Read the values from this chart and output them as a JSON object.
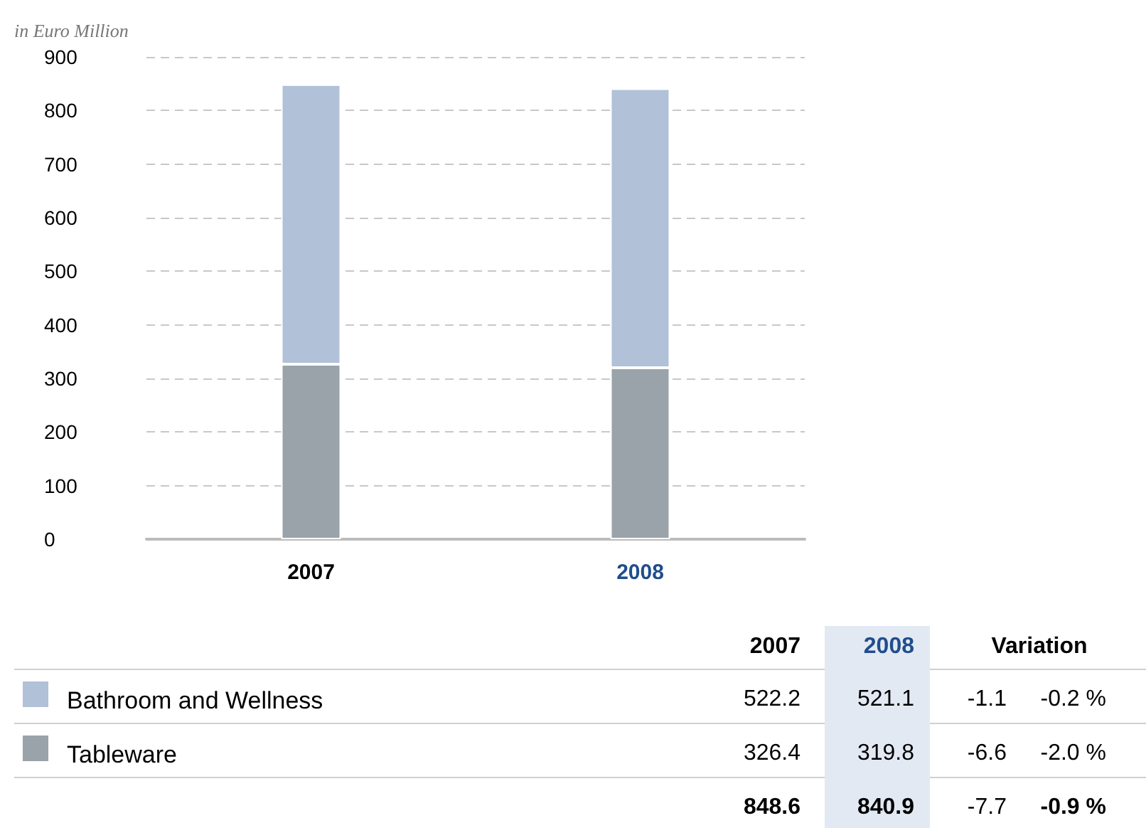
{
  "chart_data": [
    {
      "type": "bar",
      "stacked": true,
      "ylabel": "in Euro Million",
      "categories": [
        "2007",
        "2008"
      ],
      "series": [
        {
          "name": "Tableware",
          "color": "#9aa3aa",
          "values": [
            326.4,
            319.8
          ]
        },
        {
          "name": "Bathroom and Wellness",
          "color": "#b0c1d8",
          "values": [
            522.2,
            521.1
          ]
        }
      ],
      "ylim": [
        0,
        900
      ],
      "yticks": [
        0,
        100,
        200,
        300,
        400,
        500,
        600,
        700,
        800,
        900
      ],
      "grid": "y",
      "legend": "bottom"
    },
    {
      "type": "other",
      "categories": [
        "2007",
        "2008"
      ],
      "totals": [
        "848.6",
        "840.9"
      ],
      "annotations": [
        "Variation",
        "522.2",
        "521.1",
        "-1.1",
        "-0.2 %",
        "326.4",
        "319.8",
        "-6.6",
        "-2.0 %",
        "-7.7",
        "-0.9 %"
      ]
    }
  ]
}
